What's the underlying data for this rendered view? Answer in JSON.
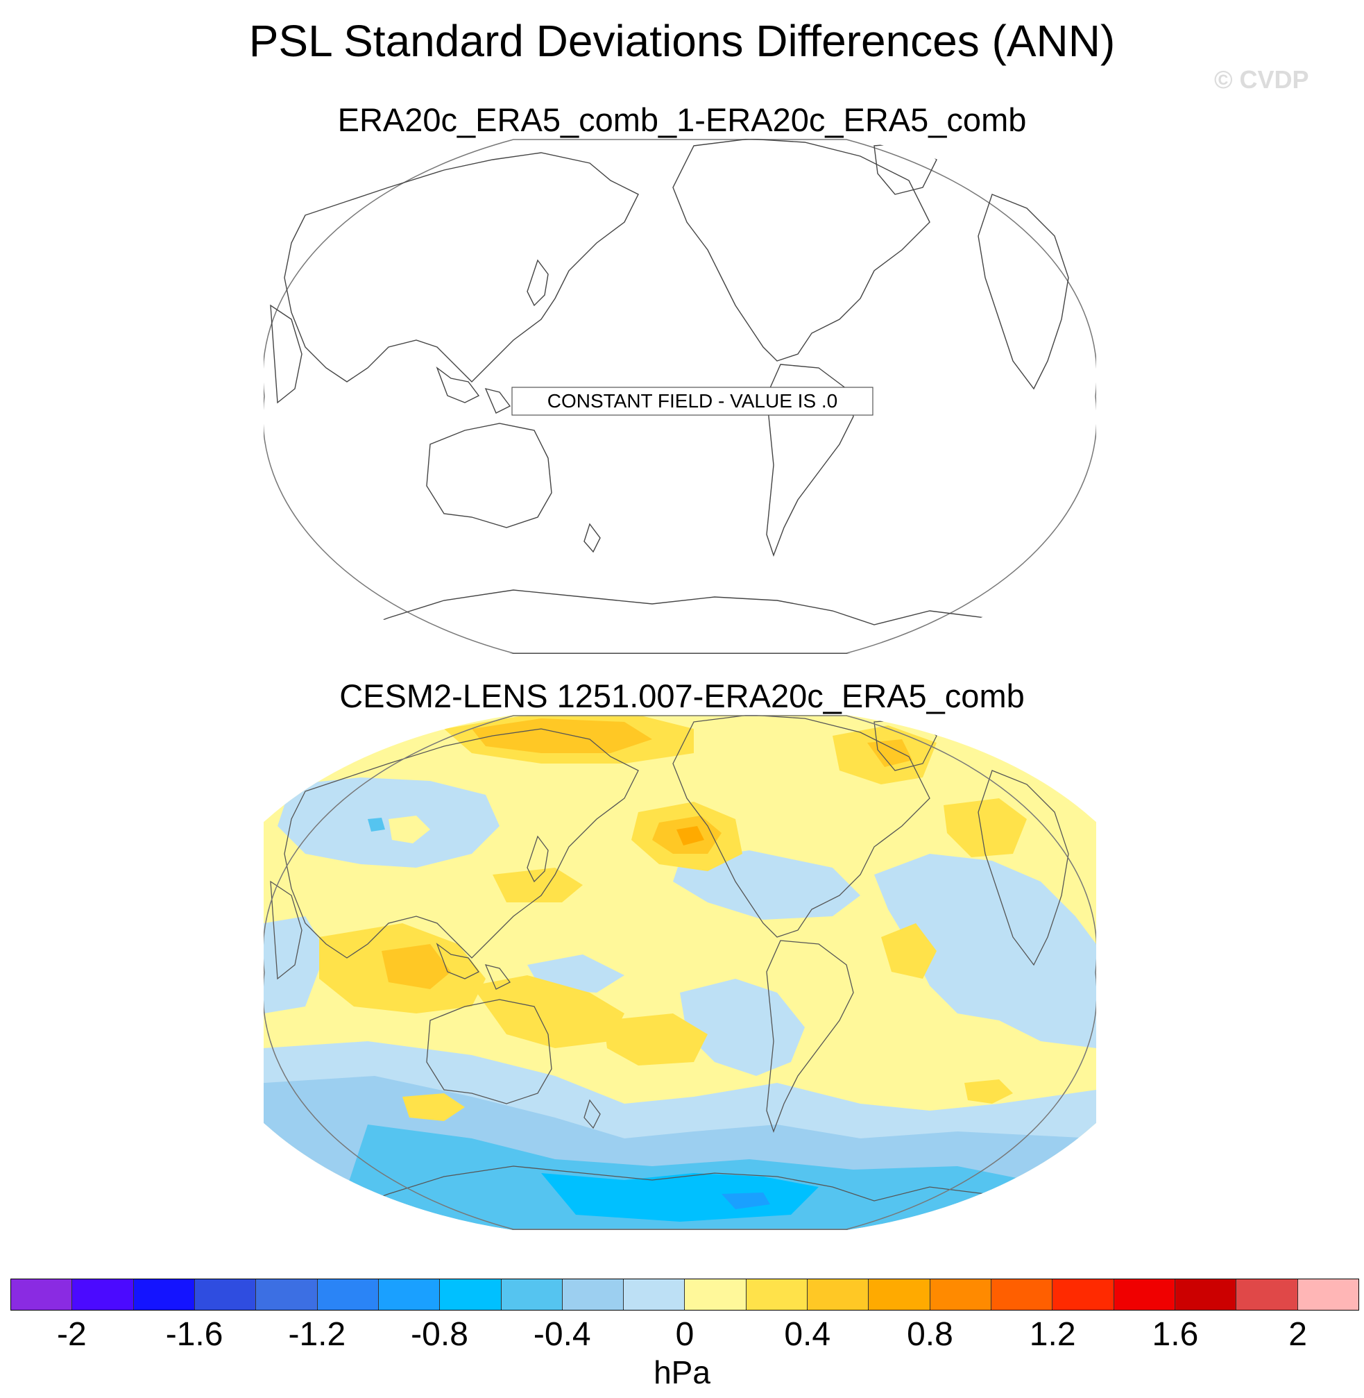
{
  "title": "PSL Standard Deviations Differences (ANN)",
  "watermark": "© CVDP",
  "panel1": {
    "subtitle": "ERA20c_ERA5_comb_1-ERA20c_ERA5_comb",
    "note": "CONSTANT FIELD - VALUE IS .0"
  },
  "panel2": {
    "subtitle": "CESM2-LENS 1251.007-ERA20c_ERA5_comb"
  },
  "colorbar": {
    "colors": [
      "#8a2be2",
      "#4b0aff",
      "#1414ff",
      "#2f4de0",
      "#3c6fe3",
      "#2a84f6",
      "#1aa0ff",
      "#00c0ff",
      "#55c4f0",
      "#9ccff0",
      "#bde0f5",
      "#fff89a",
      "#ffe24a",
      "#ffc825",
      "#ffaa00",
      "#ff8a00",
      "#ff5f00",
      "#ff2a00",
      "#f00000",
      "#cc0000",
      "#e04848",
      "#ffb6b6"
    ],
    "ticks": [
      "-2",
      "-1.6",
      "-1.2",
      "-0.8",
      "-0.4",
      "0",
      "0.4",
      "0.8",
      "1.2",
      "1.6",
      "2"
    ],
    "units": "hPa"
  }
}
